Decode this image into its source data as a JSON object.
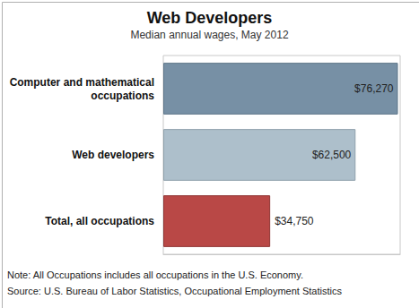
{
  "chart_data": {
    "type": "bar",
    "title": "Web Developers",
    "subtitle": "Median annual wages, May 2012",
    "orientation": "horizontal",
    "categories": [
      "Computer and mathematical occupations",
      "Web developers",
      "Total, all occupations"
    ],
    "values": [
      76270,
      62500,
      34750
    ],
    "value_labels": [
      "$76,270",
      "$62,500",
      "$34,750"
    ],
    "colors": [
      "#7790a5",
      "#adbfcb",
      "#b94846"
    ],
    "data_labels": true,
    "tick_labels": "y",
    "xlim": [
      0,
      77000
    ],
    "annotations": [
      "Note: All Occupations includes all occupations in the U.S. Economy.",
      "Source: U.S. Bureau of Labor Statistics, Occupational Employment Statistics"
    ]
  }
}
